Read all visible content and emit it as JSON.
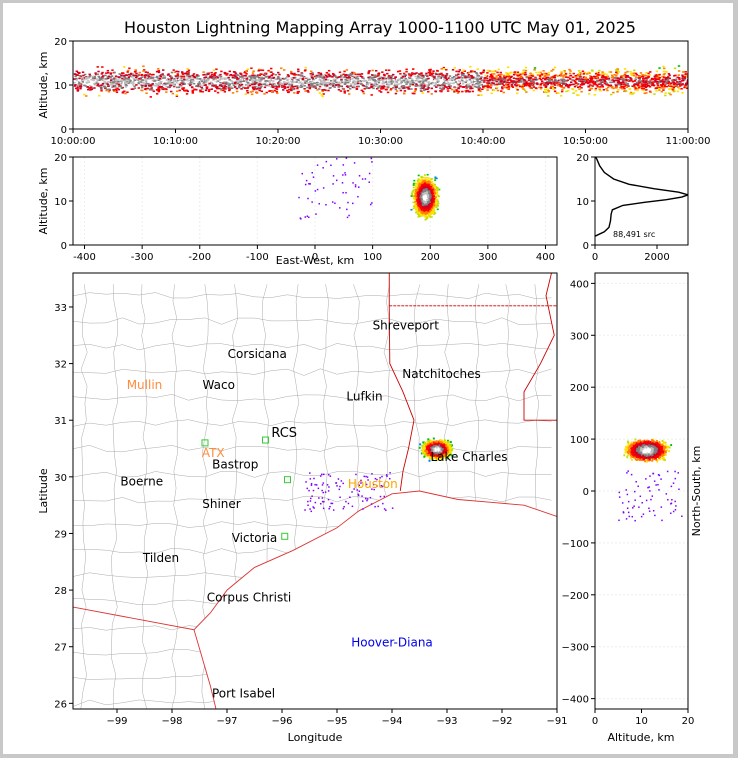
{
  "title": "Houston Lightning Mapping Array 1000-1100 UTC May 01, 2025",
  "colors": {
    "density_scale": [
      "#8000ff",
      "#0000ff",
      "#0080ff",
      "#00c000",
      "#c0e000",
      "#ffe000",
      "#ff8000",
      "#ff0000",
      "#d00020",
      "#808080",
      "#c0c0c0",
      "#ffffff"
    ],
    "state_border": "#cc0000",
    "county_border": "#aaaaaa",
    "coast": "#dd3333"
  },
  "chart_data": [
    {
      "id": "time-height",
      "type": "heatmap",
      "ylabel": "Altitude, km",
      "ylim": [
        0,
        20
      ],
      "yticks": [
        "0",
        "10",
        "20"
      ],
      "xticks": [
        "10:00:00",
        "10:10:00",
        "10:20:00",
        "10:30:00",
        "10:40:00",
        "10:50:00",
        "11:00:00"
      ],
      "x_range_min": [
        0,
        60
      ],
      "density_peak_altitude_km": 11
    },
    {
      "id": "ew-height",
      "type": "heatmap",
      "xlabel": "East-West, km",
      "ylabel": "Altitude, km",
      "xlim": [
        -420,
        420
      ],
      "ylim": [
        0,
        20
      ],
      "xticks": [
        "-400",
        "-300",
        "-200",
        "-100",
        "0",
        "100",
        "200",
        "300",
        "400"
      ],
      "yticks": [
        "0",
        "10",
        "20"
      ],
      "storm_core_x_km": 190,
      "storm_core_alt_km": 11
    },
    {
      "id": "altitude-histogram",
      "type": "line",
      "xlim": [
        0,
        3000
      ],
      "ylim": [
        0,
        20
      ],
      "xticks": [
        "0",
        "2000"
      ],
      "yticks": [
        "0",
        "10",
        "20"
      ],
      "annotation": "88,491 src",
      "profile": [
        [
          0,
          2.0
        ],
        [
          300,
          3.0
        ],
        [
          450,
          4.0
        ],
        [
          500,
          5.5
        ],
        [
          520,
          7.0
        ],
        [
          560,
          8.0
        ],
        [
          900,
          9.0
        ],
        [
          1600,
          9.7
        ],
        [
          2300,
          10.3
        ],
        [
          2800,
          10.9
        ],
        [
          3000,
          11.4
        ],
        [
          2700,
          12.0
        ],
        [
          1900,
          12.8
        ],
        [
          1100,
          13.8
        ],
        [
          600,
          15.0
        ],
        [
          300,
          16.5
        ],
        [
          150,
          18.0
        ],
        [
          60,
          19.5
        ],
        [
          20,
          20.0
        ]
      ]
    },
    {
      "id": "plan-view",
      "type": "scatter",
      "xlabel": "Longitude",
      "ylabel": "Latitude",
      "xlim": [
        -99.8,
        -91.0
      ],
      "ylim": [
        25.9,
        33.6
      ],
      "xticks": [
        "−99",
        "−98",
        "−97",
        "−96",
        "−95",
        "−94",
        "−93",
        "−92",
        "−91"
      ],
      "yticks": [
        "26",
        "27",
        "28",
        "29",
        "30",
        "31",
        "32",
        "33"
      ],
      "storm_center": [
        -93.2,
        30.5
      ],
      "cities": [
        {
          "name": "Shreveport",
          "lon": -93.75,
          "lat": 32.6,
          "color": "#000000"
        },
        {
          "name": "Corsicana",
          "lon": -96.45,
          "lat": 32.1,
          "color": "#000000"
        },
        {
          "name": "Natchitoches",
          "lon": -93.1,
          "lat": 31.75,
          "color": "#000000"
        },
        {
          "name": "Mullin",
          "lon": -98.5,
          "lat": 31.55,
          "color": "#ff8c3c"
        },
        {
          "name": "Waco",
          "lon": -97.15,
          "lat": 31.55,
          "color": "#000000"
        },
        {
          "name": "Lufkin",
          "lon": -94.5,
          "lat": 31.35,
          "color": "#000000"
        },
        {
          "name": "RCS",
          "lon": -95.96,
          "lat": 30.7,
          "color": "#000000"
        },
        {
          "name": "ATX",
          "lon": -97.25,
          "lat": 30.35,
          "color": "#ff8c3c"
        },
        {
          "name": "Bastrop",
          "lon": -96.85,
          "lat": 30.15,
          "color": "#000000"
        },
        {
          "name": "Lake Charles",
          "lon": -92.6,
          "lat": 30.28,
          "color": "#000000"
        },
        {
          "name": "Boerne",
          "lon": -98.55,
          "lat": 29.85,
          "color": "#000000"
        },
        {
          "name": "Houston",
          "lon": -94.35,
          "lat": 29.8,
          "color": "#ffa500"
        },
        {
          "name": "Shiner",
          "lon": -97.1,
          "lat": 29.45,
          "color": "#000000"
        },
        {
          "name": "Victoria",
          "lon": -96.5,
          "lat": 28.85,
          "color": "#000000"
        },
        {
          "name": "Tilden",
          "lon": -98.2,
          "lat": 28.5,
          "color": "#000000"
        },
        {
          "name": "Corpus Christi",
          "lon": -96.6,
          "lat": 27.8,
          "color": "#000000"
        },
        {
          "name": "Hoover-Diana",
          "lon": -94.0,
          "lat": 27.0,
          "color": "#0000ee"
        },
        {
          "name": "Port Isabel",
          "lon": -96.7,
          "lat": 26.1,
          "color": "#000000"
        }
      ],
      "stations": [
        {
          "lon": -97.4,
          "lat": 30.6
        },
        {
          "lon": -96.3,
          "lat": 30.65
        },
        {
          "lon": -95.9,
          "lat": 29.95
        },
        {
          "lon": -95.95,
          "lat": 28.95
        }
      ]
    },
    {
      "id": "ns-height",
      "type": "heatmap",
      "xlabel": "Altitude, km",
      "ylabel": "North-South, km",
      "xlim": [
        0,
        20
      ],
      "ylim": [
        -420,
        420
      ],
      "xticks": [
        "0",
        "10",
        "20"
      ],
      "yticks": [
        "−400",
        "−300",
        "−200",
        "−100",
        "0",
        "100",
        "200",
        "300",
        "400"
      ],
      "storm_core_y_km": 80,
      "storm_core_alt_km": 11
    }
  ]
}
